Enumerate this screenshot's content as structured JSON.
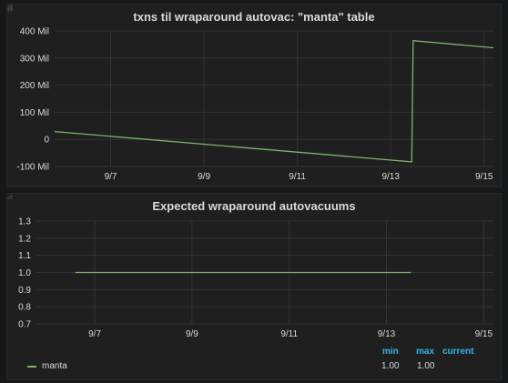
{
  "panel1": {
    "title": "txns til wraparound autovac: \"manta\" table"
  },
  "panel2": {
    "title": "Expected wraparound autovacuums",
    "legend": {
      "headers": {
        "min": "min",
        "max": "max",
        "current": "current"
      },
      "series_name": "manta",
      "min": "1.00",
      "max": "1.00",
      "current": ""
    }
  },
  "colors": {
    "series": "#7eb26d",
    "legend_header": "#33b5e5",
    "background": "#161719",
    "panel": "#1f1f20"
  },
  "chart_data": [
    {
      "type": "line",
      "title": "txns til wraparound autovac: \"manta\" table",
      "xlabel": "",
      "ylabel": "",
      "x_ticks": [
        "9/7",
        "9/9",
        "9/11",
        "9/13",
        "9/15"
      ],
      "y_ticks": [
        "400 Mil",
        "300 Mil",
        "200 Mil",
        "100 Mil",
        "0",
        "-100 Mil"
      ],
      "ylim": [
        -100,
        400
      ],
      "xlim": [
        5.8,
        15.2
      ],
      "y_unit": "Mil",
      "grid": true,
      "series": [
        {
          "name": "manta",
          "x": [
            5.8,
            13.45,
            13.48,
            15.2
          ],
          "y": [
            29,
            -83,
            364,
            338
          ]
        }
      ]
    },
    {
      "type": "line",
      "title": "Expected wraparound autovacuums",
      "xlabel": "",
      "ylabel": "",
      "x_ticks": [
        "9/7",
        "9/9",
        "9/11",
        "9/13",
        "9/15"
      ],
      "y_ticks": [
        "1.3",
        "1.2",
        "1.1",
        "1.0",
        "0.9",
        "0.8",
        "0.7"
      ],
      "ylim": [
        0.7,
        1.3
      ],
      "xlim": [
        5.8,
        15.2
      ],
      "grid": true,
      "legend": "bottom",
      "series": [
        {
          "name": "manta",
          "x": [
            6.6,
            13.5
          ],
          "y": [
            1.0,
            1.0
          ]
        }
      ]
    }
  ]
}
